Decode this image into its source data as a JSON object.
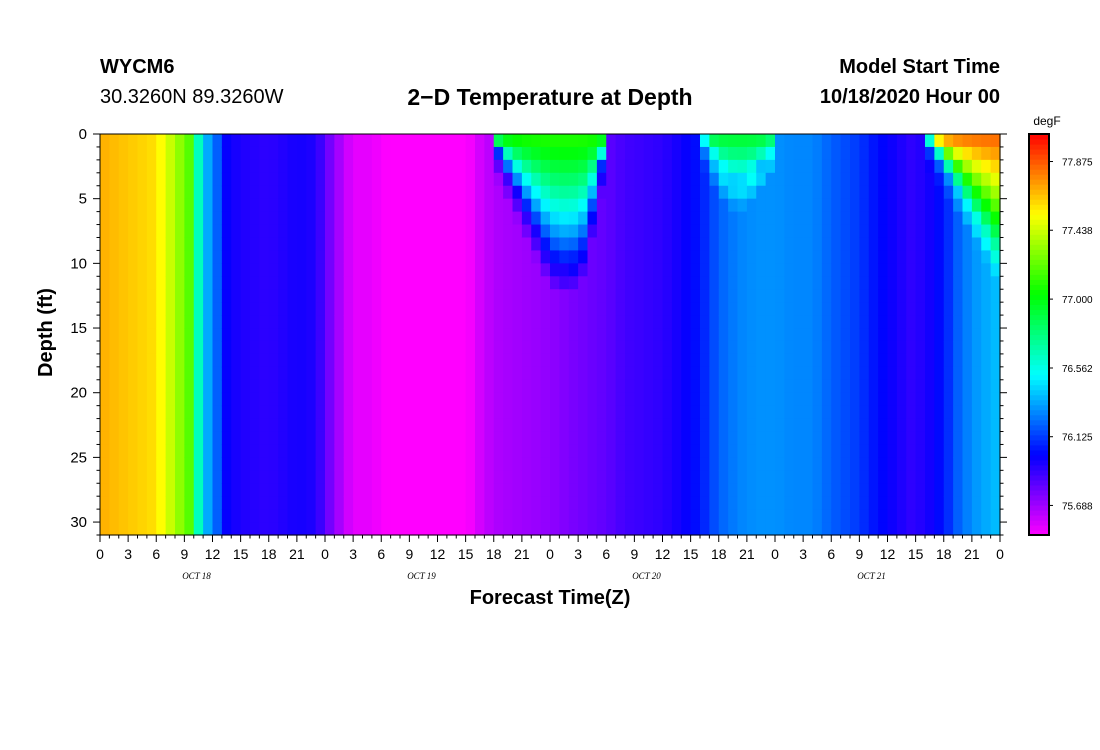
{
  "header": {
    "station": "WYCM6",
    "coords": "30.3260N 89.3260W",
    "model_start_label": "Model Start Time",
    "model_start_value": "10/18/2020 Hour 00"
  },
  "chart_data": {
    "type": "heatmap",
    "title": "2−D Temperature at Depth",
    "xlabel": "Forecast Time(Z)",
    "ylabel": "Depth (ft)",
    "x_tick_labels": [
      "0",
      "3",
      "6",
      "9",
      "12",
      "15",
      "18",
      "21",
      "0",
      "3",
      "6",
      "9",
      "12",
      "15",
      "18",
      "21",
      "0",
      "3",
      "6",
      "9",
      "12",
      "15",
      "18",
      "21",
      "0",
      "3",
      "6",
      "9",
      "12",
      "15",
      "18",
      "21",
      "0"
    ],
    "day_labels": [
      {
        "hour": 12,
        "label": "OCT 18"
      },
      {
        "hour": 36,
        "label": "OCT 19"
      },
      {
        "hour": 60,
        "label": "OCT 20"
      },
      {
        "hour": 84,
        "label": "OCT 21"
      }
    ],
    "x_range_hours": [
      0,
      96
    ],
    "y_range_ft": [
      0,
      31
    ],
    "y_ticks": [
      0,
      5,
      10,
      15,
      20,
      25,
      30
    ],
    "y_inverted": true,
    "colorbar": {
      "unit": "degF",
      "min": 75.5,
      "max": 78.05,
      "tick_values": [
        75.688,
        76.125,
        76.562,
        77.0,
        77.438,
        77.875
      ],
      "tick_labels": [
        "75.688",
        "76.125",
        "76.562",
        "77.000",
        "77.438",
        "77.875"
      ]
    },
    "bottom_profile": {
      "hours": [
        0,
        6,
        9.5,
        10.5,
        11.5,
        12.5,
        13.5,
        15,
        18,
        21,
        23,
        25,
        27,
        28.5,
        30,
        33,
        36,
        38,
        40,
        42,
        44,
        48,
        50,
        54,
        56,
        60,
        62,
        64,
        66,
        68,
        70,
        72,
        74,
        76,
        78,
        81,
        82.5,
        84,
        86.5,
        88,
        90,
        91.5,
        93,
        96
      ],
      "temps": [
        77.7,
        77.6,
        77.2,
        76.65,
        76.35,
        76.2,
        76.0,
        75.95,
        75.92,
        75.97,
        75.95,
        75.72,
        75.55,
        75.55,
        75.52,
        75.42,
        75.34,
        75.4,
        75.56,
        75.66,
        75.68,
        75.72,
        75.76,
        75.82,
        75.88,
        75.92,
        75.98,
        76.05,
        76.2,
        76.27,
        76.3,
        76.3,
        76.28,
        76.28,
        76.2,
        76.12,
        76.05,
        76.0,
        75.92,
        75.95,
        76.05,
        76.2,
        76.3,
        76.4
      ]
    },
    "warm_lenses": [
      {
        "hours": [
          41.5,
          42,
          43,
          44,
          45,
          46,
          47,
          48,
          49,
          50,
          51,
          52,
          53,
          54.5
        ],
        "base_depth_ft": [
          0,
          1,
          2.5,
          4,
          5.5,
          7,
          8.5,
          10,
          10.5,
          10.5,
          10,
          8.5,
          4,
          0
        ],
        "surface_temp": 77.1
      },
      {
        "hours": [
          64,
          65,
          66,
          67,
          68,
          69,
          70,
          71,
          72.5
        ],
        "base_depth_ft": [
          0,
          1.5,
          3,
          3.8,
          4,
          3.8,
          3,
          2,
          0
        ],
        "surface_temp": 76.95
      },
      {
        "hours": [
          88,
          89,
          90,
          91,
          92,
          93,
          94,
          95,
          96
        ],
        "base_depth_ft": [
          0,
          1.2,
          2.4,
          3.6,
          4.8,
          6,
          7.2,
          8.4,
          9.8
        ],
        "surface_temp": 77.85
      }
    ]
  }
}
